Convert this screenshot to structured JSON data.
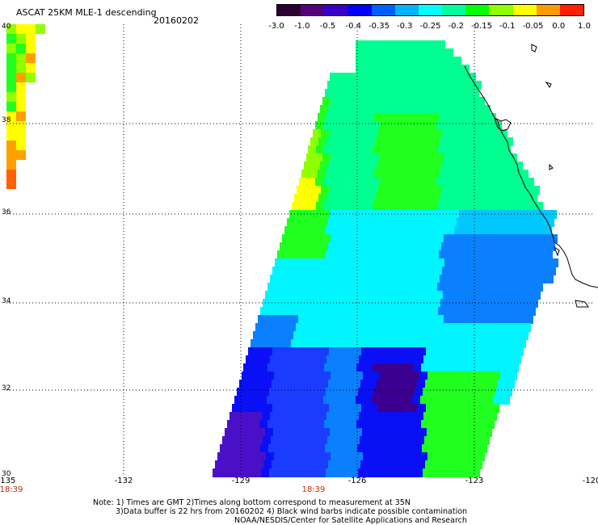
{
  "header": {
    "title": "ASCAT 25KM MLE-1 descending",
    "date": "20160202"
  },
  "colorbar": {
    "ticks": [
      "-3.0",
      "-1.0",
      "-0.5",
      "-0.4",
      "-0.35",
      "-0.3",
      "-0.25",
      "-0.2",
      "-0.15",
      "-0.1",
      "-0.05",
      "0.0",
      "1.0"
    ],
    "colors": [
      "#2a0030",
      "#55007a",
      "#3a00c8",
      "#0000ff",
      "#0060ff",
      "#00b4ff",
      "#00ffff",
      "#00ff9a",
      "#00ff00",
      "#8cff00",
      "#ffff00",
      "#ff9a00",
      "#ff2000"
    ]
  },
  "axes": {
    "x_ticks": [
      "-135",
      "-132",
      "-129",
      "-126",
      "-123",
      "-120"
    ],
    "y_ticks": [
      "40",
      "38",
      "36",
      "34",
      "32",
      "30"
    ]
  },
  "times": [
    "18:39",
    "18:39"
  ],
  "notes": [
    "Note: 1) Times are GMT 2)Times along bottom correspond to measurement at 35N",
    "3)Data buffer is 22 hrs from 20160202 4) Black wind barbs indicate possible contamination",
    "NOAA/NESDIS/Center for Satellite Applications and Research"
  ]
}
